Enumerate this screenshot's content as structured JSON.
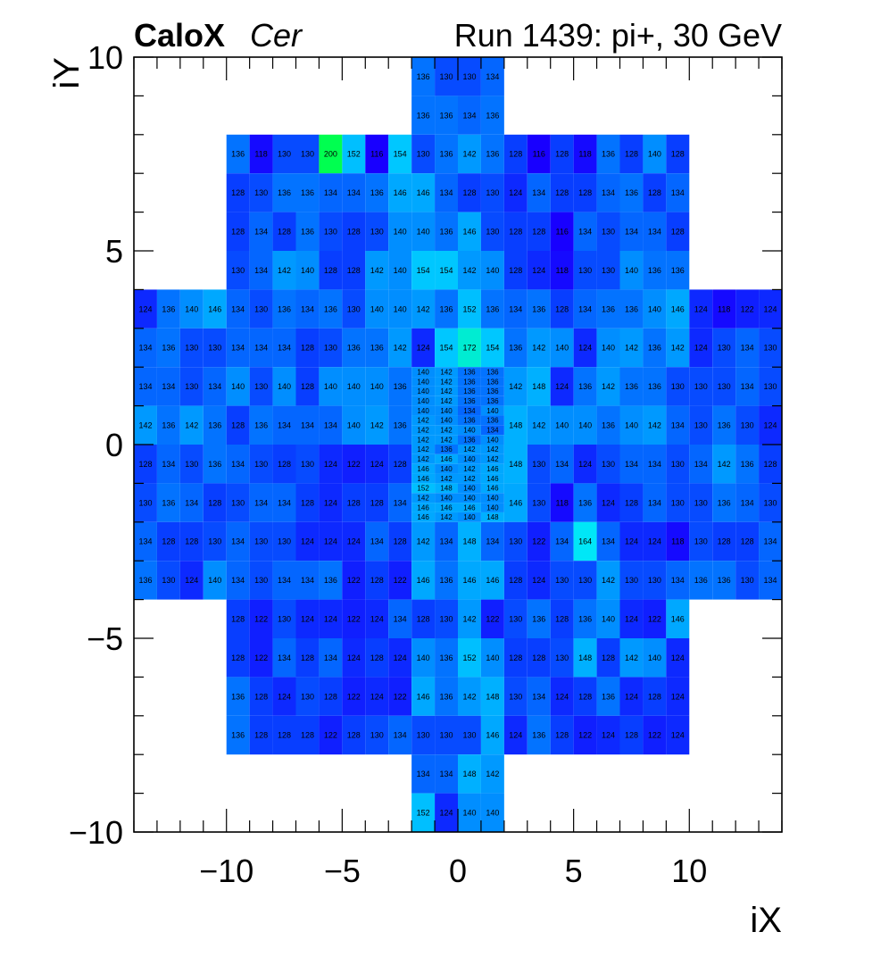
{
  "header": {
    "brand": "CaloX",
    "channel": "Cer",
    "run_label": "Run 1439: pi+, 30 GeV"
  },
  "chart_data": {
    "type": "heatmap",
    "xlabel": "iX",
    "ylabel": "iY",
    "xlim": [
      -14,
      14
    ],
    "ylim": [
      -10,
      10
    ],
    "x_ticks": [
      "−10",
      "−5",
      "0",
      "5",
      "10"
    ],
    "x_tick_values": [
      -10,
      -5,
      0,
      5,
      10
    ],
    "y_ticks": [
      "10",
      "5",
      "0",
      "−5",
      "−10"
    ],
    "y_tick_values": [
      10,
      5,
      0,
      -5,
      -10
    ],
    "color_scale": {
      "min": 116,
      "max": 200,
      "low": "#0000ff",
      "high": "#00ff44"
    },
    "rows": [
      {
        "y": 9.5,
        "start": -2,
        "w": 1,
        "values": [
          136,
          130,
          130,
          134
        ]
      },
      {
        "y": 8.5,
        "start": -2,
        "w": 1,
        "values": [
          136,
          136,
          134,
          136
        ]
      },
      {
        "y": 7.5,
        "start": -10,
        "w": 1,
        "values": [
          136,
          118,
          130,
          130,
          200,
          152,
          116,
          154,
          130,
          136,
          142,
          136,
          128,
          116,
          128,
          118,
          136,
          128,
          140,
          128
        ]
      },
      {
        "y": 6.5,
        "start": -10,
        "w": 1,
        "values": [
          128,
          130,
          136,
          136,
          134,
          134,
          136,
          146,
          146,
          134,
          128,
          130,
          124,
          134,
          128,
          128,
          134,
          136,
          128,
          134
        ]
      },
      {
        "y": 5.5,
        "start": -10,
        "w": 1,
        "values": [
          128,
          134,
          128,
          136,
          130,
          128,
          130,
          140,
          140,
          136,
          146,
          130,
          128,
          128,
          116,
          134,
          130,
          134,
          134,
          128
        ]
      },
      {
        "y": 4.5,
        "start": -10,
        "w": 1,
        "values": [
          130,
          134,
          142,
          140,
          128,
          128,
          142,
          140,
          154,
          154,
          142,
          140,
          128,
          124,
          118,
          130,
          130,
          140,
          136,
          136
        ]
      },
      {
        "y": 3.5,
        "start": -14,
        "w": 1,
        "values": [
          124,
          136,
          140,
          146,
          134,
          130,
          136,
          134,
          136,
          130,
          140,
          140,
          142,
          136,
          152,
          136,
          134,
          136,
          128,
          134,
          136,
          136,
          140,
          146,
          124,
          118,
          122,
          124
        ]
      },
      {
        "y": 2.5,
        "start": -14,
        "w": 1,
        "values": [
          134,
          136,
          130,
          130,
          134,
          134,
          134,
          128,
          130,
          136,
          136,
          142,
          124,
          154,
          172,
          154,
          136,
          142,
          140,
          124,
          140,
          142,
          136,
          142,
          124,
          130,
          134,
          130
        ]
      },
      {
        "y": 1.5,
        "start": -14,
        "w": 1,
        "values": [
          134,
          134,
          130,
          134,
          140,
          130,
          140,
          128,
          140,
          140,
          140,
          136,
          null,
          null,
          null,
          null,
          142,
          148,
          124,
          136,
          142,
          136,
          136,
          130,
          130,
          130,
          134,
          130
        ]
      },
      {
        "y": 0.5,
        "start": -14,
        "w": 1,
        "values": [
          142,
          136,
          142,
          136,
          128,
          136,
          134,
          134,
          134,
          140,
          142,
          136,
          null,
          null,
          null,
          null,
          148,
          142,
          140,
          140,
          136,
          140,
          142,
          134,
          130,
          136,
          130,
          124
        ]
      },
      {
        "y": -0.5,
        "start": -14,
        "w": 1,
        "values": [
          128,
          134,
          130,
          136,
          134,
          130,
          128,
          130,
          124,
          122,
          124,
          128,
          null,
          null,
          null,
          null,
          148,
          130,
          134,
          124,
          130,
          134,
          134,
          130,
          134,
          142,
          136,
          128
        ]
      },
      {
        "y": -1.5,
        "start": -14,
        "w": 1,
        "values": [
          130,
          136,
          134,
          128,
          130,
          134,
          134,
          128,
          124,
          128,
          128,
          134,
          null,
          null,
          null,
          null,
          146,
          130,
          118,
          136,
          124,
          128,
          134,
          130,
          130,
          136,
          134,
          130
        ]
      },
      {
        "y": -2.5,
        "start": -14,
        "w": 1,
        "values": [
          134,
          128,
          128,
          130,
          134,
          130,
          130,
          124,
          124,
          124,
          134,
          128,
          142,
          134,
          148,
          134,
          130,
          122,
          134,
          164,
          134,
          124,
          124,
          118,
          130,
          128,
          128,
          134
        ]
      },
      {
        "y": -3.5,
        "start": -14,
        "w": 1,
        "values": [
          136,
          130,
          124,
          140,
          134,
          130,
          134,
          134,
          136,
          122,
          128,
          122,
          146,
          136,
          146,
          146,
          128,
          124,
          130,
          130,
          142,
          130,
          130,
          134,
          136,
          136,
          130,
          134
        ]
      },
      {
        "y": -4.5,
        "start": -10,
        "w": 1,
        "values": [
          128,
          122,
          130,
          124,
          124,
          122,
          124,
          134,
          128,
          130,
          142,
          122,
          130,
          136,
          128,
          136,
          140,
          124,
          122,
          146
        ]
      },
      {
        "y": -5.5,
        "start": -10,
        "w": 1,
        "values": [
          128,
          122,
          134,
          128,
          134,
          124,
          128,
          124,
          140,
          136,
          152,
          140,
          128,
          128,
          130,
          148,
          128,
          142,
          140,
          124
        ]
      },
      {
        "y": -6.5,
        "start": -10,
        "w": 1,
        "values": [
          136,
          128,
          124,
          130,
          128,
          122,
          124,
          122,
          146,
          136,
          142,
          148,
          130,
          134,
          124,
          128,
          136,
          124,
          128,
          124
        ]
      },
      {
        "y": -7.5,
        "start": -10,
        "w": 1,
        "values": [
          136,
          128,
          128,
          128,
          122,
          128,
          130,
          134,
          130,
          130,
          130,
          146,
          124,
          136,
          128,
          122,
          124,
          128,
          122,
          124
        ]
      },
      {
        "y": -8.5,
        "start": -2,
        "w": 1,
        "values": [
          134,
          134,
          148,
          142
        ]
      },
      {
        "y": -9.5,
        "start": -2,
        "w": 1,
        "values": [
          152,
          124,
          140,
          140
        ]
      }
    ],
    "fine_rows": [
      {
        "y": 1.75,
        "values": [
          140,
          142,
          136,
          136
        ]
      },
      {
        "y": 1.25,
        "values": [
          140,
          142,
          136,
          136
        ]
      },
      {
        "y": 0.75,
        "values": [
          142,
          140,
          136,
          136
        ]
      },
      {
        "y": 0.25,
        "values": [
          142,
          142,
          134,
          136
        ]
      },
      {
        "y": -0.25,
        "values": [
          142,
          136,
          142,
          142
        ]
      },
      {
        "y": -0.75,
        "values": [
          146,
          142,
          142,
          146
        ]
      },
      {
        "y": -1.25,
        "values": [
          142,
          140,
          140,
          140
        ]
      },
      {
        "y": -1.75,
        "values": [
          146,
          142,
          140,
          148
        ]
      }
    ],
    "fine_rows2": [
      {
        "y": 1.625,
        "values": [
          140,
          142,
          136,
          136
        ]
      },
      {
        "y": 1.375,
        "values": [
          140,
          142,
          136,
          136
        ]
      },
      {
        "y": 0.875,
        "values": [
          140,
          140,
          134,
          140
        ]
      },
      {
        "y": 0.375,
        "values": [
          142,
          142,
          140,
          134
        ]
      },
      {
        "y": 0.125,
        "values": [
          142,
          142,
          136,
          140
        ]
      },
      {
        "y": -0.375,
        "values": [
          142,
          146,
          140,
          142
        ]
      },
      {
        "y": -0.625,
        "values": [
          146,
          140,
          142,
          146
        ]
      },
      {
        "y": -1.125,
        "values": [
          152,
          148,
          140,
          146
        ]
      },
      {
        "y": -1.375,
        "values": [
          142,
          140,
          140,
          140
        ]
      },
      {
        "y": -1.625,
        "values": [
          146,
          146,
          146,
          140
        ]
      }
    ]
  }
}
